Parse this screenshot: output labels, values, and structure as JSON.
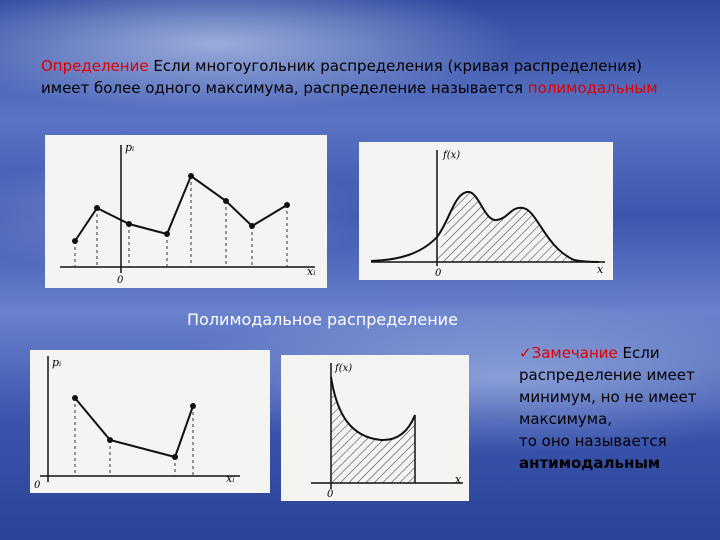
{
  "definition": {
    "term": "Определение",
    "text_line1": " Если многоугольник распределения (кривая распределения)",
    "text_line2": "имеет более одного максимума, распределение называется ",
    "highlight": "полимодальным"
  },
  "caption": "Полимодальное распределение",
  "remark": {
    "check": "✓",
    "term": "Замечание",
    "line1": " Если",
    "line2": "распределение имеет",
    "line3": "минимум, но не имеет",
    "line4": "максимума,",
    "line5": "то оно называется",
    "highlight": "антимодальным"
  },
  "graph_labels": {
    "pi": "pᵢ",
    "xi": "xᵢ",
    "fx": "f(x)",
    "x": "x",
    "zero": "0"
  },
  "colors": {
    "accent_red": "#e00000",
    "highlight_white": "#ffffff",
    "panel_bg": "#f4f4f2"
  }
}
